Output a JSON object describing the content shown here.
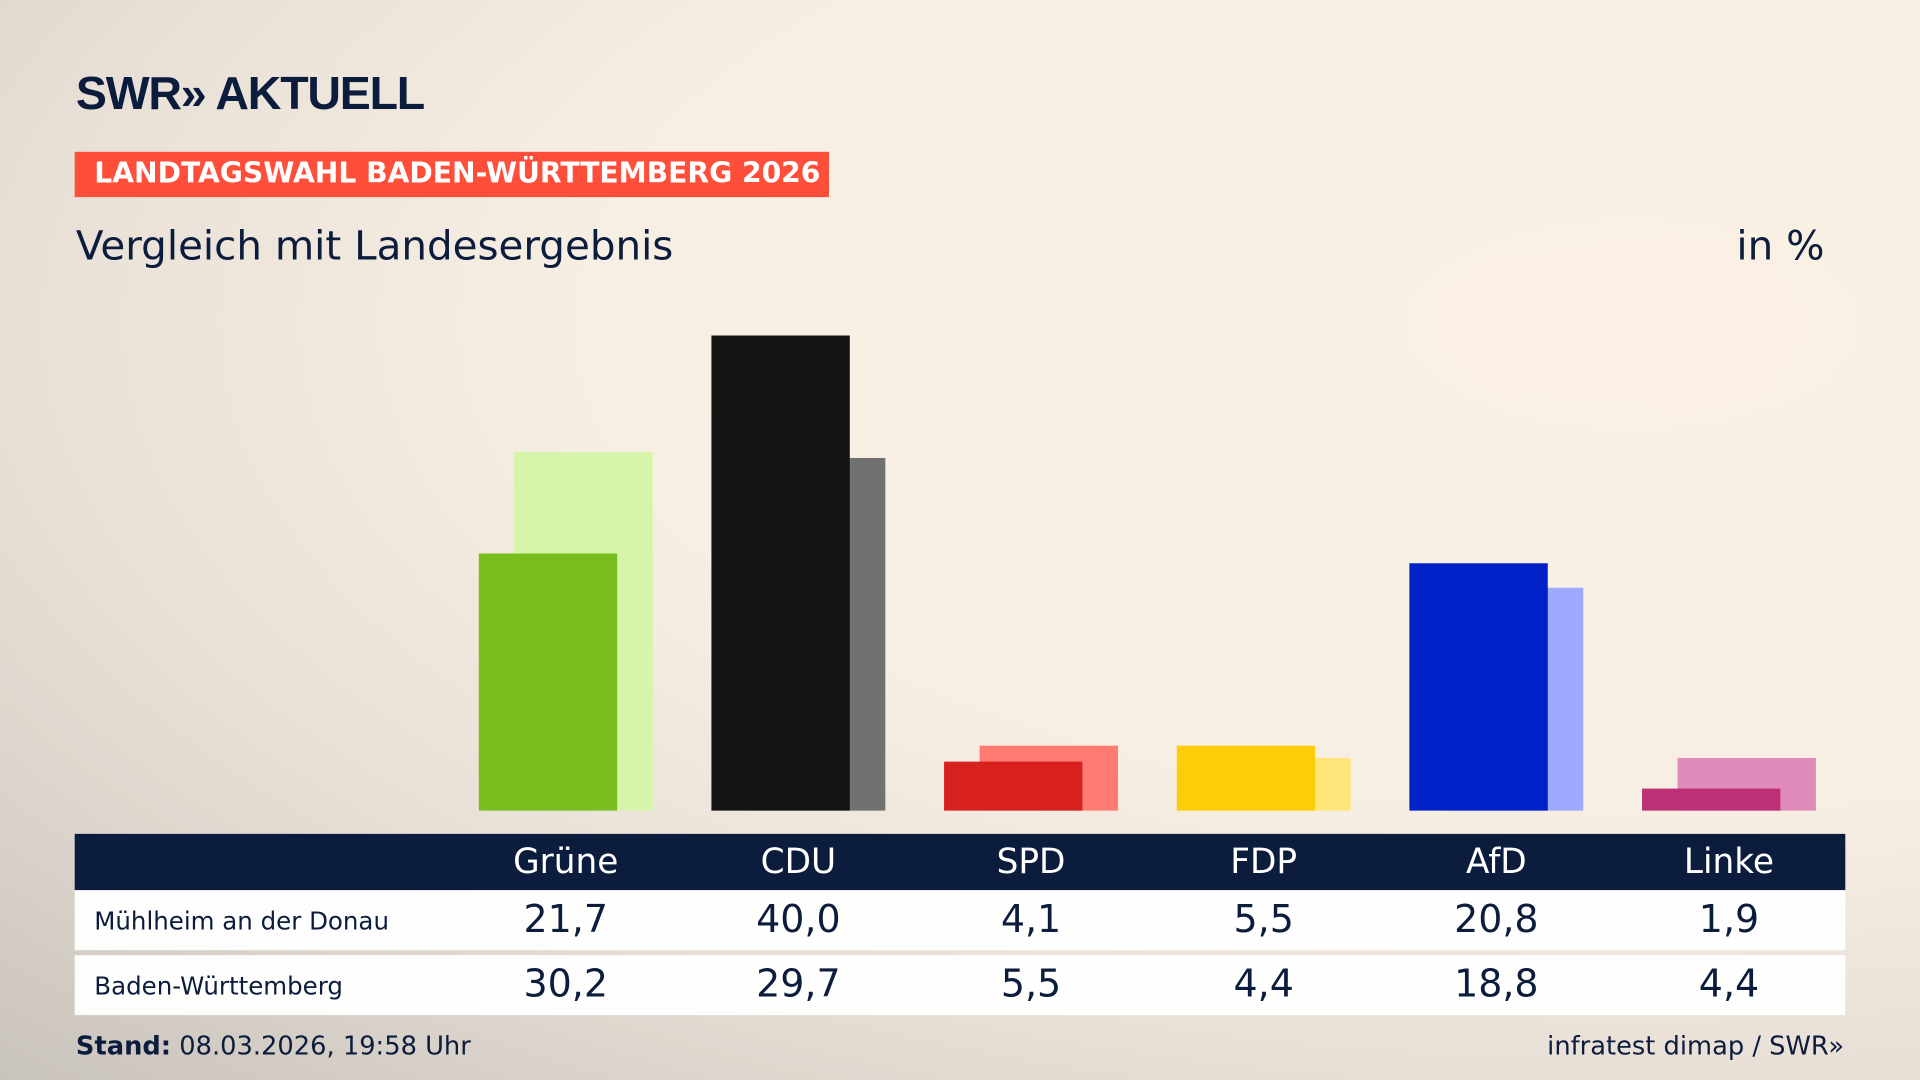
{
  "header": {
    "logo": "SWR» AKTUELL",
    "badge": "LANDTAGSWAHL BADEN-WÜRTTEMBERG 2026",
    "subtitle": "Vergleich mit Landesergebnis",
    "unit": "in %"
  },
  "chart_data": {
    "type": "bar",
    "categories": [
      "Grüne",
      "CDU",
      "SPD",
      "FDP",
      "AfD",
      "Linke"
    ],
    "series": [
      {
        "name": "Mühlheim an der Donau",
        "values": [
          21.7,
          40.0,
          4.1,
          5.5,
          20.8,
          1.9
        ],
        "labels": [
          "21,7",
          "40,0",
          "4,1",
          "5,5",
          "20,8",
          "1,9"
        ]
      },
      {
        "name": "Baden-Württemberg",
        "values": [
          30.2,
          29.7,
          5.5,
          4.4,
          18.8,
          4.4
        ],
        "labels": [
          "30,2",
          "29,7",
          "5,5",
          "4,4",
          "18,8",
          "4,4"
        ]
      }
    ],
    "colors": {
      "primary": [
        "#78be1e",
        "#141414",
        "#d8201e",
        "#ffcc0a",
        "#0021c8",
        "#be3075"
      ],
      "secondary": [
        "#d6f5aa",
        "#717171",
        "#ff7b72",
        "#ffe57a",
        "#9eaaff",
        "#df8ab8"
      ]
    },
    "ylim": [
      0,
      40
    ],
    "grid": false
  },
  "footer": {
    "stand_label": "Stand:",
    "stand_value": " 08.03.2026, 19:58 Uhr",
    "source": "infratest dimap / SWR»"
  }
}
